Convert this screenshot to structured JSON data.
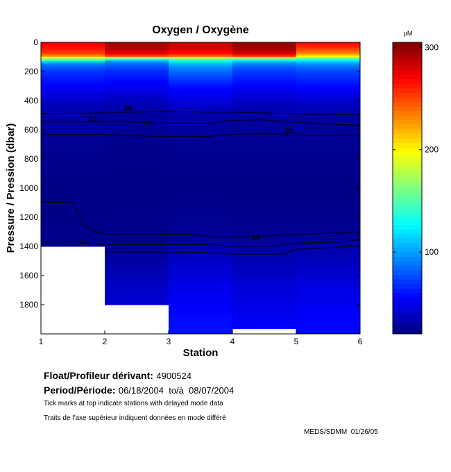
{
  "chart_data": {
    "type": "heatmap",
    "title": "Oxygen / Oxygène",
    "xlabel": "Station",
    "ylabel": "Pressure / Pression (dbar)",
    "xlim": [
      1,
      6
    ],
    "ylim": [
      2000,
      0
    ],
    "x_ticks": [
      "1",
      "2",
      "3",
      "4",
      "5",
      "6"
    ],
    "y_ticks": [
      "0",
      "200",
      "400",
      "600",
      "800",
      "1000",
      "1200",
      "1400",
      "1600",
      "1800"
    ],
    "colormap": "jet",
    "clim": [
      20,
      305
    ],
    "colorbar": {
      "label": "μM",
      "ticks": [
        "100",
        "200",
        "300"
      ]
    },
    "pressure_levels": [
      0,
      40,
      80,
      100,
      120,
      140,
      160,
      200,
      300,
      400,
      500,
      700,
      1000,
      1300,
      1500,
      1700,
      1900,
      2000
    ],
    "columns": [
      {
        "from_station": 1,
        "to_station": 2,
        "max_pressure": 1400,
        "oxygen": [
          275,
          265,
          250,
          215,
          150,
          100,
          85,
          70,
          55,
          40,
          30,
          25,
          22,
          23,
          25,
          30,
          35,
          38
        ]
      },
      {
        "from_station": 2,
        "to_station": 3,
        "max_pressure": 1800,
        "oxygen": [
          295,
          290,
          275,
          235,
          120,
          90,
          80,
          68,
          52,
          38,
          28,
          24,
          22,
          24,
          30,
          40,
          45,
          48
        ]
      },
      {
        "from_station": 3,
        "to_station": 4,
        "max_pressure": 2000,
        "oxygen": [
          285,
          280,
          265,
          230,
          140,
          115,
          100,
          85,
          60,
          45,
          32,
          25,
          22,
          26,
          40,
          50,
          58,
          60
        ]
      },
      {
        "from_station": 4,
        "to_station": 5,
        "max_pressure": 1965,
        "oxygen": [
          300,
          295,
          280,
          240,
          130,
          100,
          85,
          72,
          55,
          40,
          30,
          25,
          22,
          25,
          35,
          45,
          52,
          55
        ]
      },
      {
        "from_station": 5,
        "to_station": 6,
        "max_pressure": 2000,
        "oxygen": [
          270,
          255,
          230,
          190,
          130,
          105,
          90,
          75,
          58,
          42,
          30,
          25,
          22,
          25,
          37,
          48,
          55,
          58
        ]
      }
    ],
    "contours": [
      {
        "label": "26",
        "label_at": [
          2.3,
          470
        ],
        "points": [
          [
            1,
            490
          ],
          [
            2,
            485
          ],
          [
            2.5,
            478
          ],
          [
            3,
            470
          ],
          [
            3.5,
            478
          ],
          [
            4,
            480
          ],
          [
            4.5,
            485
          ],
          [
            5,
            490
          ],
          [
            6,
            495
          ]
        ]
      },
      {
        "label": "24",
        "label_at": [
          1.75,
          548
        ],
        "points": [
          [
            1,
            546
          ],
          [
            2.5,
            546
          ],
          [
            2.9,
            556
          ],
          [
            3.6,
            556
          ],
          [
            4,
            535
          ],
          [
            4.5,
            532
          ],
          [
            5,
            548
          ],
          [
            6,
            570
          ]
        ]
      },
      {
        "label": "22",
        "label_at": [
          4.82,
          625
        ],
        "points": [
          [
            1,
            632
          ],
          [
            2,
            632
          ],
          [
            2.3,
            640
          ],
          [
            3,
            646
          ],
          [
            3.6,
            646
          ],
          [
            4,
            630
          ],
          [
            4.6,
            627
          ],
          [
            5,
            640
          ],
          [
            5.6,
            640
          ],
          [
            6,
            633
          ]
        ]
      },
      {
        "label": "",
        "points": [
          [
            1,
            1097
          ],
          [
            1.5,
            1097
          ],
          [
            1.65,
            1240
          ],
          [
            1.8,
            1290
          ],
          [
            2,
            1316
          ],
          [
            3.3,
            1316
          ],
          [
            3.7,
            1335
          ],
          [
            4.3,
            1335
          ],
          [
            5,
            1316
          ],
          [
            6,
            1305
          ]
        ]
      },
      {
        "label": "24",
        "label_at": [
          4.3,
          1358
        ],
        "points": [
          [
            1,
            1368
          ],
          [
            1.5,
            1368
          ],
          [
            2,
            1387
          ],
          [
            3.5,
            1387
          ],
          [
            4,
            1400
          ],
          [
            4.6,
            1400
          ],
          [
            5,
            1377
          ],
          [
            5.7,
            1370
          ],
          [
            6,
            1353
          ]
        ]
      },
      {
        "label": "",
        "points": [
          [
            2,
            1439
          ],
          [
            3.5,
            1439
          ],
          [
            4,
            1453
          ],
          [
            4.8,
            1453
          ],
          [
            5,
            1420
          ],
          [
            6,
            1396
          ]
        ]
      }
    ]
  },
  "info": {
    "float_label": "Float/Profileur dérivant:",
    "float_id": "4900524",
    "period_label": "Period/Période:",
    "period_value": "06/18/2004  to/à  08/07/2004",
    "note_en": "Tick marks at top indicate stations with delayed mode data",
    "note_fr": "Traits de l'axe supérieur indiquent données en mode différé",
    "credit": "MEDS/SDMM  01/26/05"
  }
}
